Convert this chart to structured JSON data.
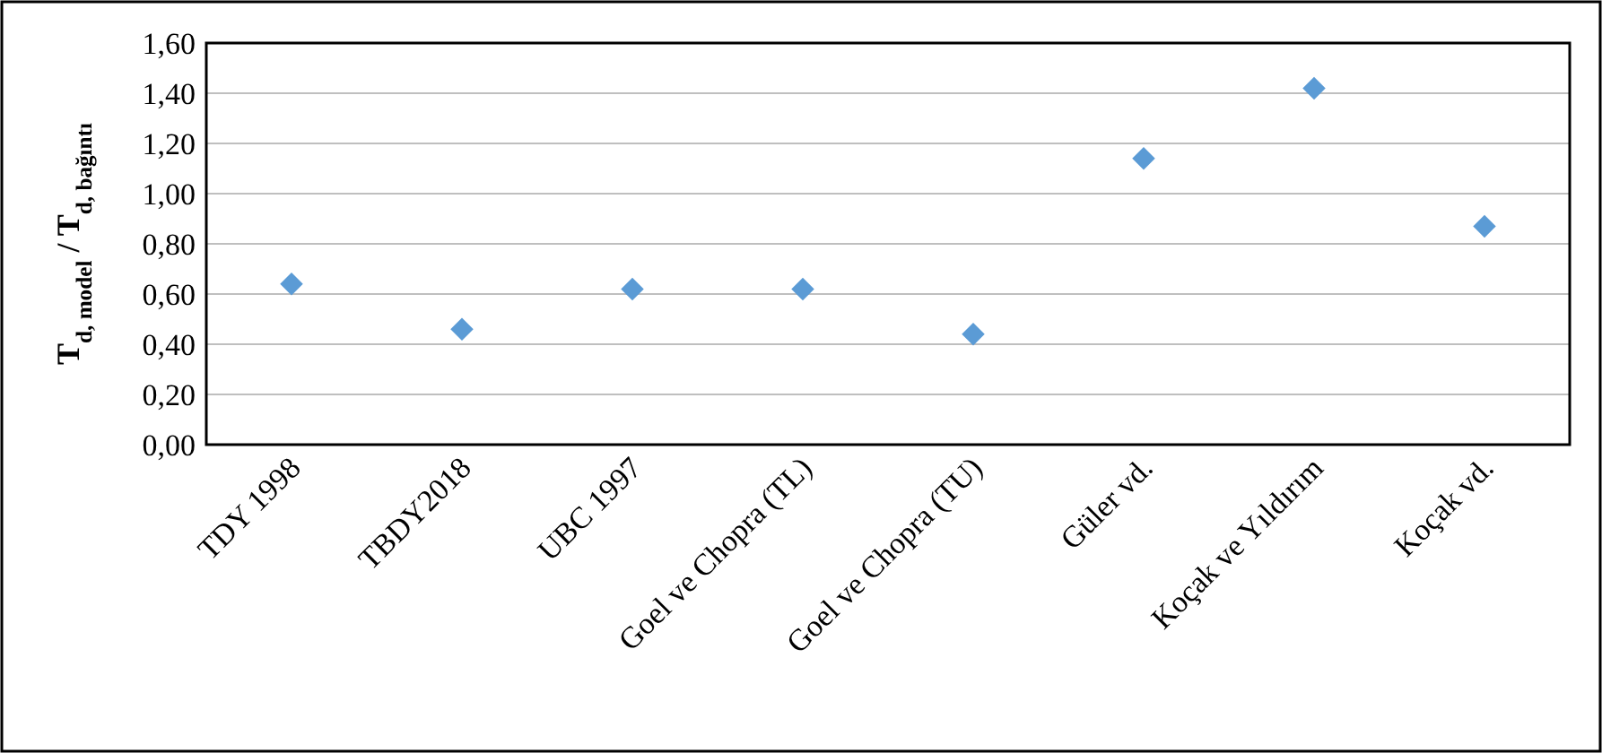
{
  "chart_data": {
    "type": "scatter",
    "ylabel": "T$_{d, model}$ / T$_{d, bağıntı}$",
    "categories": [
      "TDY 1998",
      "TBDY2018",
      "UBC 1997",
      "Goel ve Chopra (TL)",
      "Goel ve Chopra (TU)",
      "Güler vd.",
      "Koçak ve Yıldırım",
      "Koçak vd."
    ],
    "series": [
      {
        "color": "#5b9bd5",
        "values": [
          0.64,
          0.46,
          0.62,
          0.62,
          0.44,
          1.14,
          1.42,
          0.87
        ]
      }
    ],
    "ylim": [
      0,
      1.6
    ],
    "yticks": [
      {
        "value": 0,
        "label": "0,00"
      },
      {
        "value": 0.2,
        "label": "0,20"
      },
      {
        "value": 0.4,
        "label": "0,40"
      },
      {
        "value": 0.6,
        "label": "0,60"
      },
      {
        "value": 0.8,
        "label": "0,80"
      },
      {
        "value": 1,
        "label": "1,00"
      },
      {
        "value": 1.2,
        "label": "1,20"
      },
      {
        "value": 1.4,
        "label": "1,40"
      },
      {
        "value": 1.6,
        "label": "1,60"
      }
    ],
    "grid": "y",
    "marker": "diamond"
  }
}
